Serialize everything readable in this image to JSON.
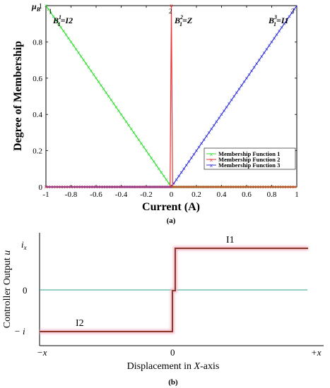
{
  "chart_data": [
    {
      "type": "line",
      "ylabel": "Degree of Membership",
      "y_symbol": "μ",
      "y_symbol_sub": "B",
      "xlabel": "Current (A)",
      "caption": "(a)",
      "xlim": [
        -1,
        1
      ],
      "ylim": [
        0,
        1
      ],
      "x_ticks": [
        "-1",
        "-0.8",
        "-0.6",
        "-0.4",
        "-0.2",
        "0",
        "0.2",
        "0.4",
        "0.6",
        "0.8",
        "1"
      ],
      "y_ticks": [
        "0",
        "0.2",
        "0.4",
        "0.6",
        "0.8",
        "1"
      ],
      "legend_position": "bottom-right",
      "series": [
        {
          "name": "Membership Function 1",
          "color": "#33dd33",
          "marker": "x",
          "x": [
            -1,
            0,
            1
          ],
          "y": [
            1,
            0,
            0
          ]
        },
        {
          "name": "Membership Function 2",
          "color": "#ee3333",
          "marker": "x",
          "x": [
            -1,
            -0.01,
            0,
            0.01,
            1
          ],
          "y": [
            0,
            0,
            1,
            0,
            0
          ]
        },
        {
          "name": "Membership Function 3",
          "color": "#3333dd",
          "marker": "x",
          "x": [
            -1,
            0,
            1
          ],
          "y": [
            0,
            0,
            1
          ]
        }
      ],
      "peak_labels": [
        {
          "index": "1",
          "base": "B",
          "sup": "1",
          "sub": "1",
          "rhs": "=I2"
        },
        {
          "index": "2",
          "base": "B",
          "sup": "2",
          "sub": "1",
          "rhs": "=Z"
        },
        {
          "index": "3",
          "base": "B",
          "sup": "3",
          "sub": "1",
          "rhs": "=I1"
        }
      ]
    },
    {
      "type": "line",
      "ylabel": "Controller Output",
      "ylabel_var": "u",
      "xlabel": "Displacement in",
      "xlabel_var": "X",
      "xlabel_suffix": "-axis",
      "caption": "(b)",
      "x_ticks": [
        "−x",
        "0",
        "+x"
      ],
      "y_ticks": [
        "i",
        "0",
        "− i"
      ],
      "y_tick_top_sub": "x",
      "series": [
        {
          "name": "I2",
          "color": "#8b3a2a",
          "x": [
            "−x",
            "0",
            "0",
            "+x"
          ],
          "y": [
            "−i",
            "−i",
            "i",
            "i"
          ]
        }
      ],
      "labels": {
        "left": "I2",
        "right": "I1"
      }
    }
  ]
}
